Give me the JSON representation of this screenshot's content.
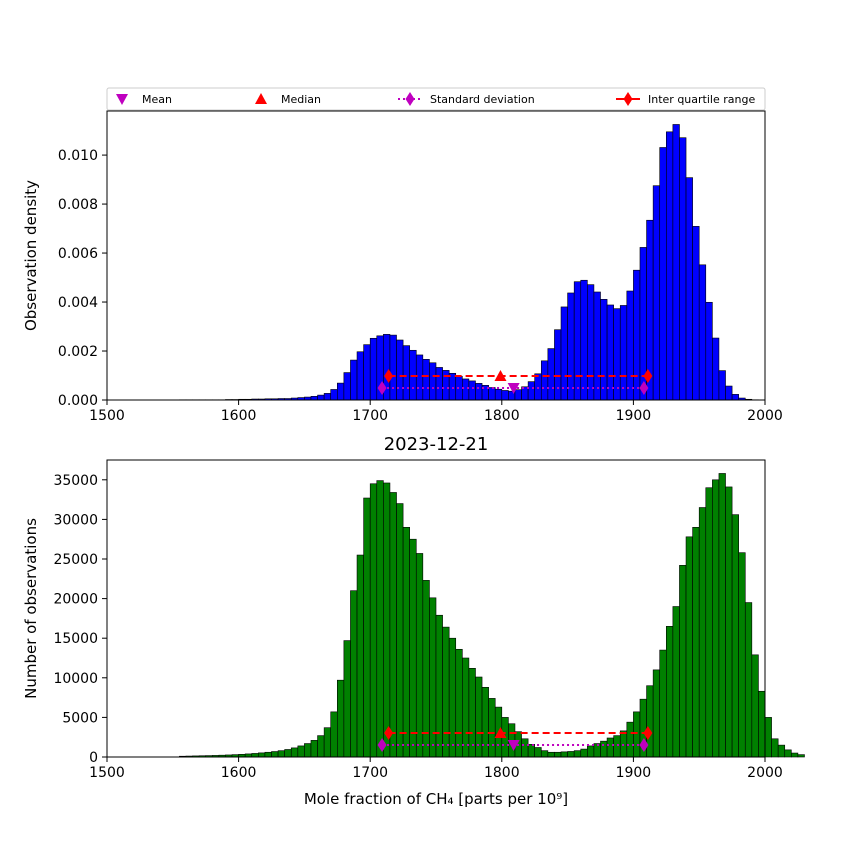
{
  "legend": {
    "placement": "top, above upper panel",
    "entries": [
      {
        "label": "Mean",
        "marker": "triangle-down",
        "color": "#bf00bf"
      },
      {
        "label": "Median",
        "marker": "triangle-up",
        "color": "#ff0000"
      },
      {
        "label": "Standard deviation",
        "marker": "diamond",
        "line": "dotted",
        "color": "#bf00bf"
      },
      {
        "label": "Inter quartile range",
        "marker": "diamond",
        "line": "solid",
        "color": "#ff0000"
      }
    ]
  },
  "chart_data": [
    {
      "type": "bar",
      "title": "",
      "xlabel": "",
      "ylabel": "Observation density",
      "xlim": [
        1500,
        2000
      ],
      "ylim": [
        0,
        0.0118
      ],
      "xticks": [
        1500,
        1600,
        1700,
        1800,
        1900,
        2000
      ],
      "xtick_labels": [
        "1500",
        "1600",
        "1700",
        "1800",
        "1900",
        "2000"
      ],
      "yticks": [
        0,
        0.002,
        0.004,
        0.006,
        0.008,
        0.01
      ],
      "ytick_labels": [
        "0.000",
        "0.002",
        "0.004",
        "0.006",
        "0.008",
        "0.010"
      ],
      "bar_color": "#0000ff",
      "bin_width": 5,
      "bin_start": 1555,
      "values": [
        1e-05,
        1e-05,
        1e-05,
        1e-05,
        1e-05,
        1e-05,
        1e-05,
        2e-05,
        2e-05,
        3e-05,
        3e-05,
        4e-05,
        4e-05,
        5e-05,
        5e-05,
        6e-05,
        6e-05,
        8e-05,
        0.0001,
        0.00012,
        0.00015,
        0.0002,
        0.00027,
        0.00043,
        0.00069,
        0.00112,
        0.00163,
        0.00197,
        0.00226,
        0.00252,
        0.00262,
        0.00268,
        0.00265,
        0.00245,
        0.00222,
        0.00203,
        0.00184,
        0.00166,
        0.00152,
        0.00133,
        0.00121,
        0.00109,
        0.00097,
        0.00086,
        0.00078,
        0.00068,
        0.0006,
        0.00051,
        0.00044,
        0.00039,
        0.00036,
        0.00042,
        0.00054,
        0.00075,
        0.00107,
        0.0016,
        0.0021,
        0.00287,
        0.0038,
        0.00437,
        0.00483,
        0.00489,
        0.00471,
        0.00441,
        0.00411,
        0.00388,
        0.00373,
        0.00386,
        0.00445,
        0.0053,
        0.00623,
        0.00734,
        0.00875,
        0.01031,
        0.01095,
        0.01125,
        0.01071,
        0.00908,
        0.00709,
        0.00552,
        0.00399,
        0.00253,
        0.0012,
        0.00057,
        0.00023,
        8e-05,
        3e-05,
        1e-05
      ],
      "markers": {
        "mean": 1809,
        "median": 1799,
        "std": [
          1709,
          1908
        ],
        "iqr": [
          1714,
          1911
        ]
      }
    },
    {
      "type": "bar",
      "title": "2023-12-21",
      "xlabel": "Mole fraction of CH₄ [parts per 10⁹]",
      "ylabel": "Number of observations",
      "xlim": [
        1500,
        2000
      ],
      "ylim": [
        0,
        37500
      ],
      "xticks": [
        1500,
        1600,
        1700,
        1800,
        1900,
        2000
      ],
      "xtick_labels": [
        "1500",
        "1600",
        "1700",
        "1800",
        "1900",
        "2000"
      ],
      "yticks": [
        0,
        5000,
        10000,
        15000,
        20000,
        25000,
        30000,
        35000
      ],
      "ytick_labels": [
        "0",
        "5000",
        "10000",
        "15000",
        "20000",
        "25000",
        "30000",
        "35000"
      ],
      "bar_color": "#008000",
      "bin_width": 5,
      "bin_start": 1555,
      "values": [
        100,
        120,
        140,
        160,
        180,
        200,
        230,
        260,
        300,
        340,
        390,
        450,
        520,
        600,
        690,
        800,
        950,
        1150,
        1400,
        1700,
        2100,
        2700,
        3700,
        5700,
        9700,
        14700,
        21000,
        25500,
        32700,
        34500,
        34900,
        34600,
        33400,
        32000,
        29000,
        27500,
        25700,
        22300,
        20100,
        17900,
        16400,
        15000,
        13600,
        12500,
        11200,
        10100,
        8800,
        7400,
        6300,
        5000,
        4200,
        3200,
        2300,
        1600,
        1200,
        800,
        600,
        600,
        650,
        700,
        800,
        1000,
        1400,
        1700,
        2000,
        2400,
        2700,
        3300,
        4400,
        5700,
        7300,
        9000,
        11000,
        13500,
        16500,
        19000,
        24200,
        27800,
        29000,
        31500,
        34000,
        35000,
        35800,
        34100,
        30600,
        25800,
        19500,
        12900,
        8300,
        5000,
        2300,
        1500,
        900,
        500,
        300
      ],
      "markers": {
        "mean": 1809,
        "median": 1799,
        "std": [
          1709,
          1908
        ],
        "iqr": [
          1714,
          1911
        ]
      }
    }
  ]
}
